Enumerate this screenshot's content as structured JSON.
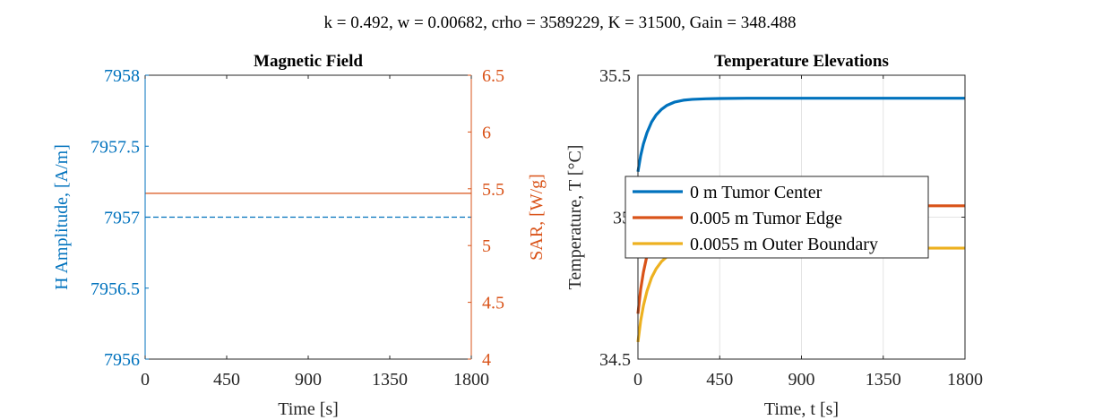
{
  "figure": {
    "suptitle": "k = 0.492, w = 0.00682, crho = 3589229, K = 31500, Gain = 348.488"
  },
  "colors": {
    "blue": "#0072BD",
    "orange": "#D95319",
    "yellow": "#EDB120",
    "axis": "#262626",
    "grid": "#e3e3e3"
  },
  "chart_data": [
    {
      "type": "line",
      "title": "Magnetic Field",
      "xlabel": "Time [s]",
      "ylabel_left": "H Amplitude, [A/m]",
      "ylabel_right": "SAR, [W/g]",
      "xlim": [
        0,
        1800
      ],
      "ylim_left": [
        7956,
        7958
      ],
      "ylim_right": [
        4,
        6.5
      ],
      "xticks": [
        0,
        450,
        900,
        1350,
        1800
      ],
      "yticks_left": [
        7956,
        7956.5,
        7957,
        7957.5,
        7958
      ],
      "yticks_right": [
        4,
        4.5,
        5,
        5.5,
        6,
        6.5
      ],
      "xtick_labels": [
        "0",
        "450",
        "900",
        "1350",
        "1800"
      ],
      "yticks_left_labels": [
        "7956",
        "7956.5",
        "7957",
        "7957.5",
        "7958"
      ],
      "yticks_right_labels": [
        "4",
        "4.5",
        "5",
        "5.5",
        "6",
        "6.5"
      ],
      "grid": false,
      "series": [
        {
          "axis": "left",
          "color": "#0072BD",
          "style": "dashed",
          "x": [
            0,
            1800
          ],
          "y": [
            7957,
            7957
          ]
        },
        {
          "axis": "right",
          "color": "#D95319",
          "style": "solid",
          "x": [
            0,
            1800
          ],
          "y": [
            5.46,
            5.46
          ]
        }
      ]
    },
    {
      "type": "line",
      "title": "Temperature Elevations",
      "xlabel": "Time, t [s]",
      "ylabel": "Temperature, T [°C]",
      "xlim": [
        0,
        1800
      ],
      "ylim": [
        34.5,
        35.5
      ],
      "xticks": [
        0,
        450,
        900,
        1350,
        1800
      ],
      "yticks": [
        34.5,
        35,
        35.5
      ],
      "xtick_labels": [
        "0",
        "450",
        "900",
        "1350",
        "1800"
      ],
      "ytick_labels": [
        "34.5",
        "35",
        "35.5"
      ],
      "grid": true,
      "legend_position": "upper-left",
      "series": [
        {
          "name": "0 m Tumor Center",
          "color": "#0072BD",
          "x": [
            0,
            15,
            30,
            50,
            75,
            100,
            130,
            160,
            200,
            250,
            300,
            375,
            450,
            600,
            900,
            1350,
            1800
          ],
          "y": [
            35.16,
            35.217,
            35.258,
            35.298,
            35.335,
            35.36,
            35.38,
            35.394,
            35.405,
            35.412,
            35.415,
            35.417,
            35.418,
            35.419,
            35.419,
            35.419,
            35.419
          ]
        },
        {
          "name": "0.005 m Tumor Edge",
          "color": "#D95319",
          "x": [
            0,
            15,
            30,
            50,
            75,
            100,
            130,
            160,
            200,
            250,
            300,
            375,
            450,
            600,
            900,
            1350,
            1800
          ],
          "y": [
            34.66,
            34.746,
            34.806,
            34.866,
            34.92,
            34.955,
            34.985,
            35.005,
            35.02,
            35.03,
            35.035,
            35.038,
            35.039,
            35.04,
            35.04,
            35.04,
            35.04
          ]
        },
        {
          "name": "0.0055 m Outer Boundary",
          "color": "#EDB120",
          "x": [
            0,
            15,
            30,
            50,
            75,
            100,
            130,
            160,
            200,
            250,
            300,
            375,
            450,
            600,
            900,
            1350,
            1800
          ],
          "y": [
            34.56,
            34.635,
            34.688,
            34.74,
            34.787,
            34.818,
            34.844,
            34.861,
            34.874,
            34.882,
            34.886,
            34.889,
            34.89,
            34.891,
            34.891,
            34.891,
            34.891
          ]
        }
      ]
    }
  ]
}
